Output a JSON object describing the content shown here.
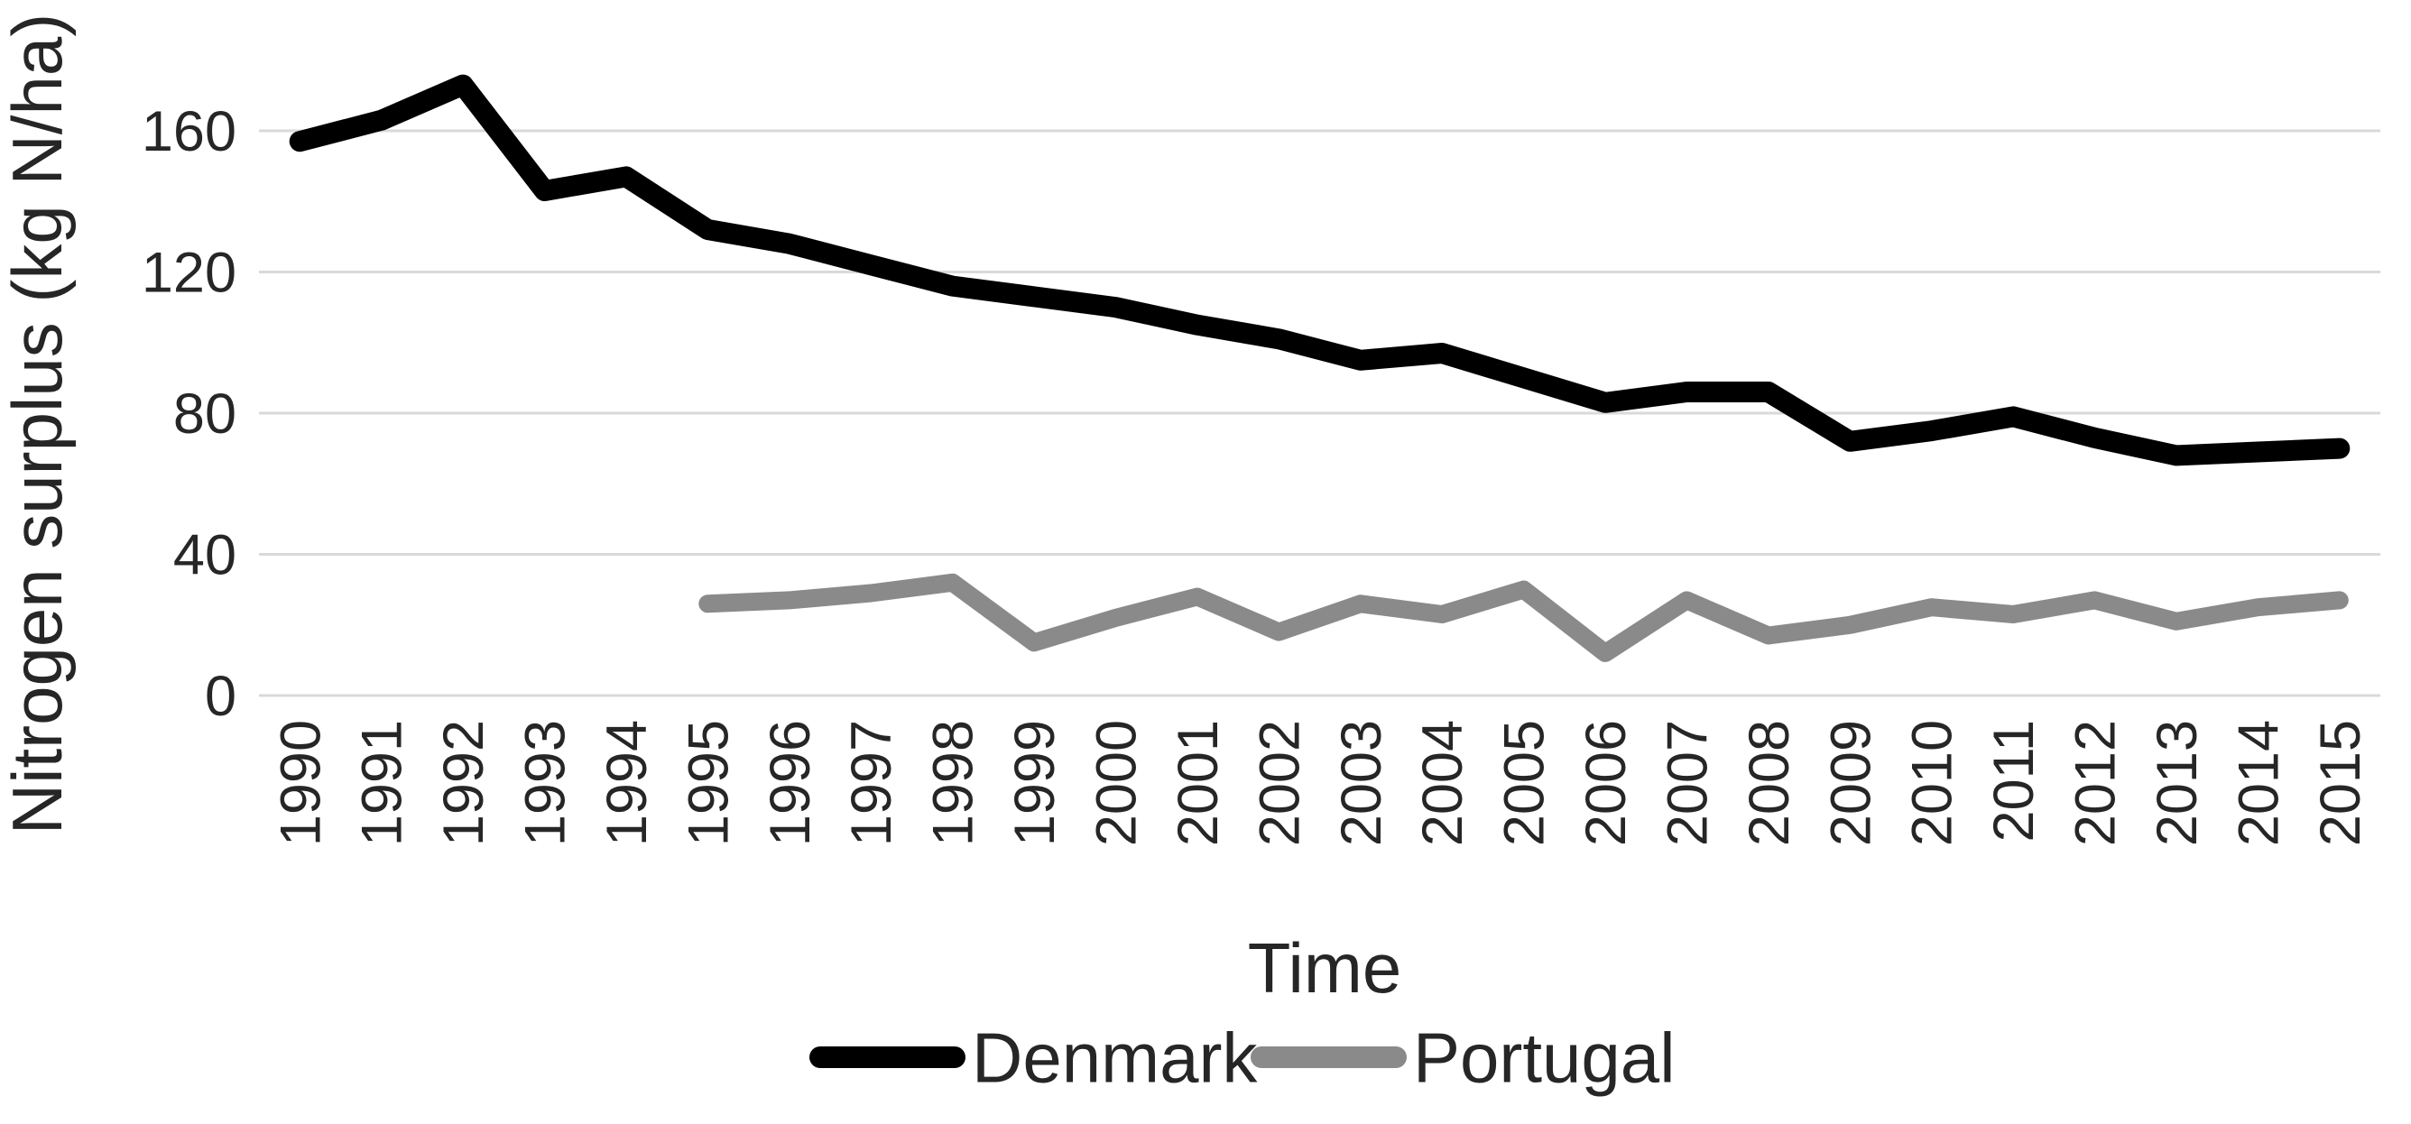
{
  "chart_data": {
    "type": "line",
    "title": "",
    "xlabel": "Time",
    "ylabel": "Nitrogen surplus (kg N/ha)",
    "x": [
      "1990",
      "1991",
      "1992",
      "1993",
      "1994",
      "1995",
      "1996",
      "1997",
      "1998",
      "1999",
      "2000",
      "2001",
      "2002",
      "2003",
      "2004",
      "2005",
      "2006",
      "2007",
      "2008",
      "2009",
      "2010",
      "2011",
      "2012",
      "2013",
      "2014",
      "2015"
    ],
    "series": [
      {
        "name": "Denmark",
        "color": "#000000",
        "values": [
          157,
          163,
          173,
          143,
          147,
          132,
          128,
          122,
          116,
          113,
          110,
          105,
          101,
          95,
          97,
          90,
          83,
          86,
          86,
          72,
          75,
          79,
          73,
          68,
          69,
          70
        ]
      },
      {
        "name": "Portugal",
        "color": "#8a8a8a",
        "values": [
          null,
          null,
          null,
          null,
          null,
          26,
          27,
          29,
          32,
          15,
          22,
          28,
          18,
          26,
          23,
          30,
          12,
          27,
          17,
          20,
          25,
          23,
          27,
          21,
          25,
          27
        ]
      }
    ],
    "ylim": [
      0,
      180
    ],
    "yticks": [
      0,
      40,
      80,
      120,
      160
    ],
    "grid": true,
    "legend_position": "bottom",
    "gridline_color": "#d9d9d9",
    "text_color": "#262626"
  }
}
